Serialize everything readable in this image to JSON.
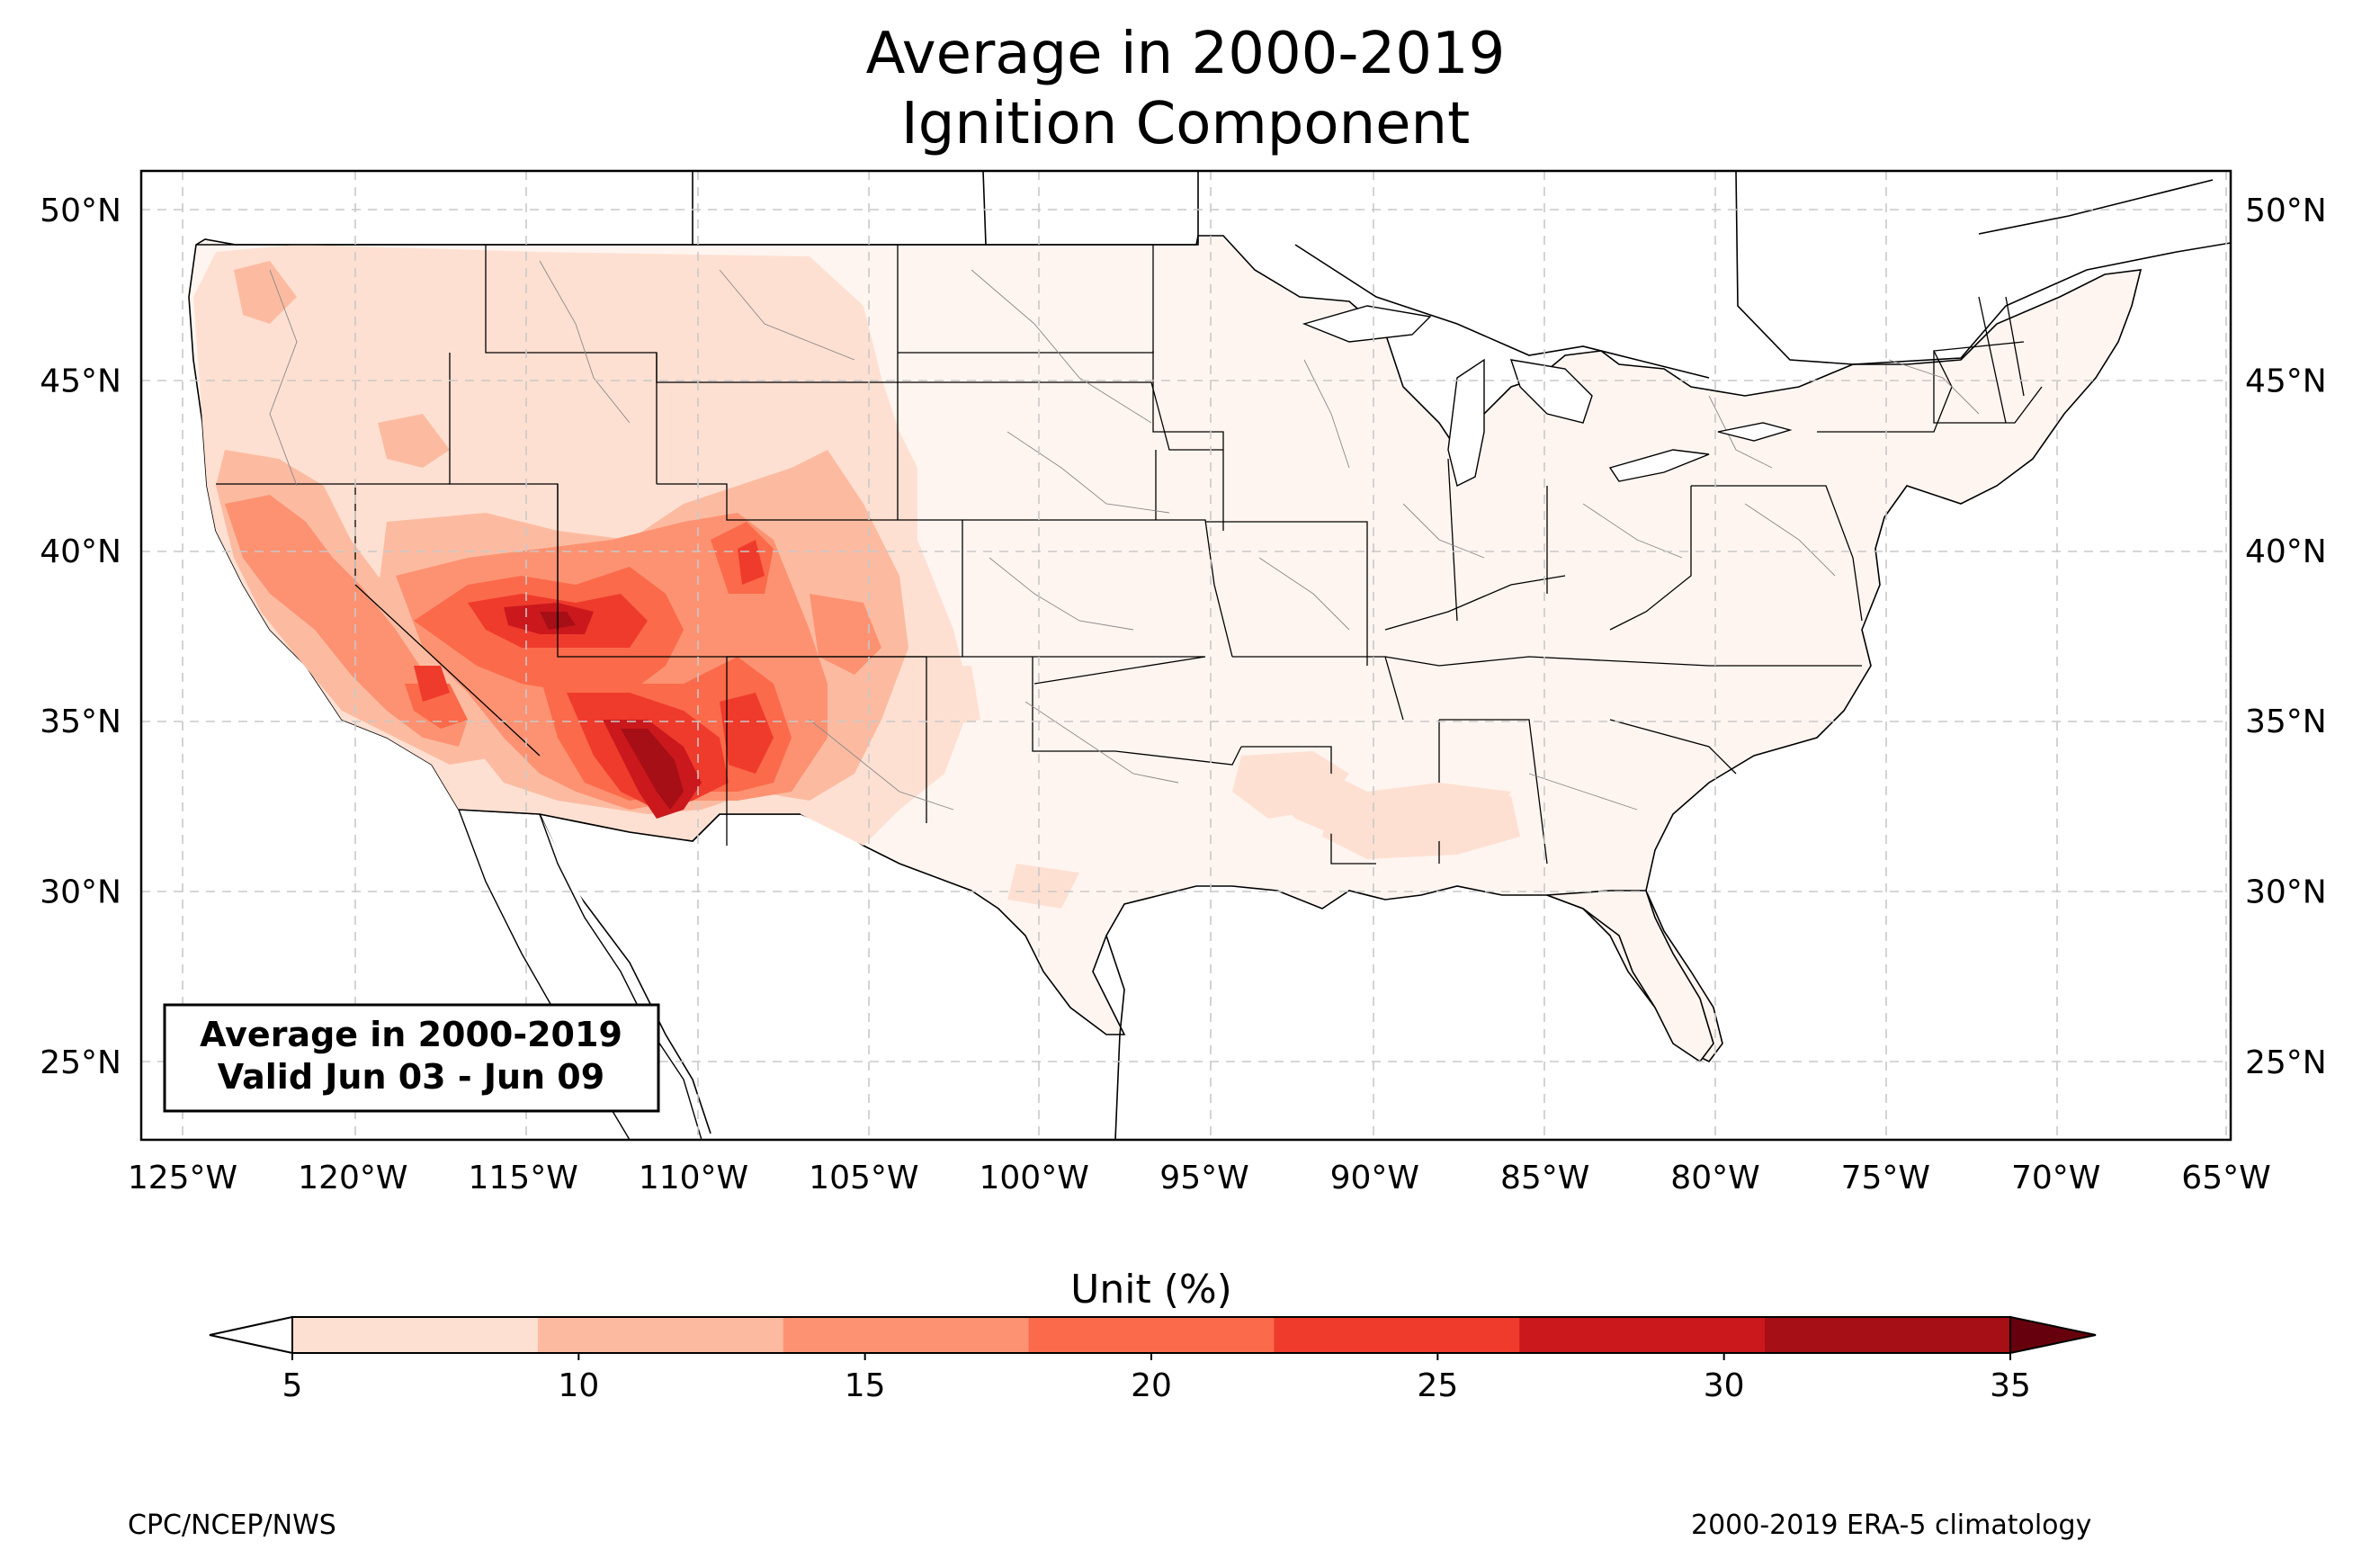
{
  "title": {
    "line1": "Average in 2000-2019",
    "line2": "Ignition Component"
  },
  "inset_box": {
    "line1": "Average in 2000-2019",
    "line2": "Valid Jun 03 - Jun 09"
  },
  "lat_ticks": [
    {
      "value": 50,
      "label": "50°N"
    },
    {
      "value": 45,
      "label": "45°N"
    },
    {
      "value": 40,
      "label": "40°N"
    },
    {
      "value": 35,
      "label": "35°N"
    },
    {
      "value": 30,
      "label": "30°N"
    },
    {
      "value": 25,
      "label": "25°N"
    }
  ],
  "lon_ticks": [
    {
      "value": -125,
      "label": "125°W"
    },
    {
      "value": -120,
      "label": "120°W"
    },
    {
      "value": -115,
      "label": "115°W"
    },
    {
      "value": -110,
      "label": "110°W"
    },
    {
      "value": -105,
      "label": "105°W"
    },
    {
      "value": -100,
      "label": "100°W"
    },
    {
      "value": -95,
      "label": "95°W"
    },
    {
      "value": -90,
      "label": "90°W"
    },
    {
      "value": -85,
      "label": "85°W"
    },
    {
      "value": -80,
      "label": "80°W"
    },
    {
      "value": -75,
      "label": "75°W"
    },
    {
      "value": -70,
      "label": "70°W"
    },
    {
      "value": -65,
      "label": "65°W"
    }
  ],
  "colorbar": {
    "label": "Unit (%)",
    "ticks": [
      "5",
      "10",
      "15",
      "20",
      "25",
      "30",
      "35"
    ],
    "colors": [
      "#fee0d2",
      "#fcbba1",
      "#fc9272",
      "#fb6a4a",
      "#ef3b2c",
      "#cb181d",
      "#a50f15"
    ],
    "under_color": "#ffffff",
    "over_color": "#67000d"
  },
  "footer": {
    "left": "CPC/NCEP/NWS",
    "right": "2000-2019 ERA-5 climatology"
  }
}
